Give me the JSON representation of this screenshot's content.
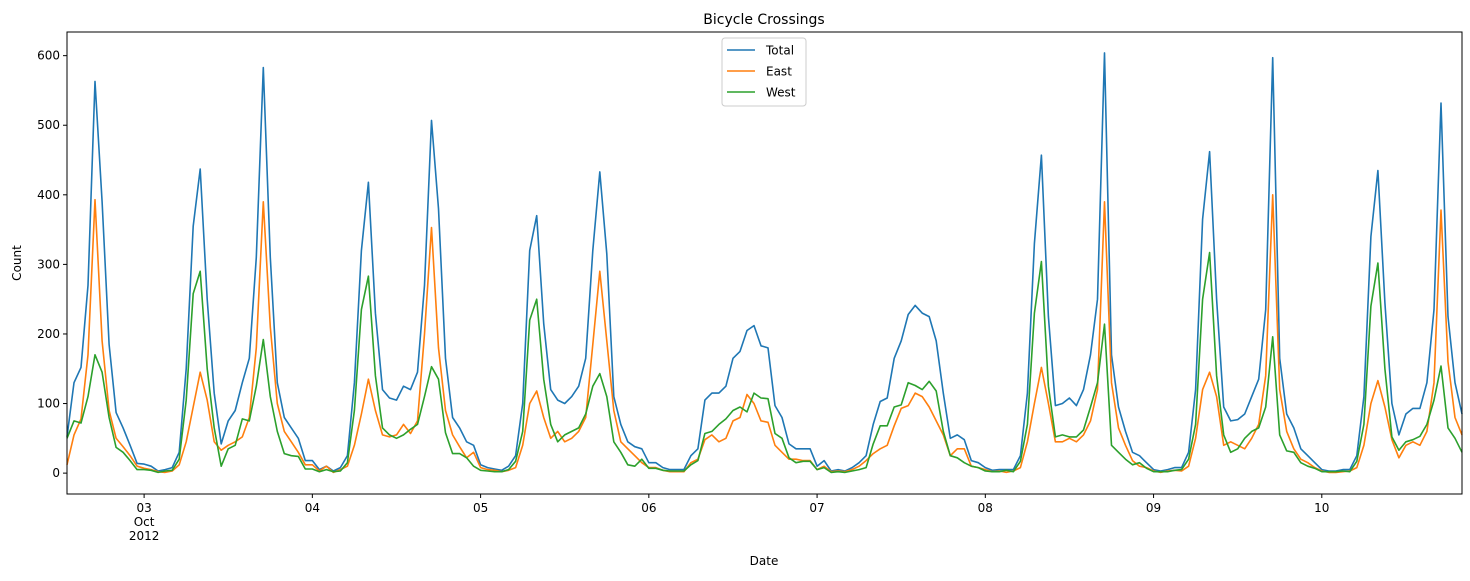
{
  "chart_data": {
    "type": "line",
    "title": "Bicycle Crossings",
    "xlabel": "Date",
    "ylabel": "Count",
    "x_start": "2012-10-02 13:00",
    "x_step": "1 hour",
    "ylim": [
      -30,
      634
    ],
    "yticks": [
      0,
      100,
      200,
      300,
      400,
      500,
      600
    ],
    "xticks": [
      {
        "hour_index": 11,
        "label": [
          "03",
          "Oct",
          "2012"
        ]
      },
      {
        "hour_index": 35,
        "label": [
          "04"
        ]
      },
      {
        "hour_index": 59,
        "label": [
          "05"
        ]
      },
      {
        "hour_index": 83,
        "label": [
          "06"
        ]
      },
      {
        "hour_index": 107,
        "label": [
          "07"
        ]
      },
      {
        "hour_index": 131,
        "label": [
          "08"
        ]
      },
      {
        "hour_index": 155,
        "label": [
          "09"
        ]
      },
      {
        "hour_index": 179,
        "label": [
          "10"
        ]
      }
    ],
    "legend_position": "top-center",
    "grid": false,
    "series": [
      {
        "name": "Total",
        "color": "#1f77b4",
        "values": [
          52,
          130,
          152,
          270,
          563,
          390,
          185,
          87,
          65,
          40,
          14,
          13,
          10,
          3,
          5,
          8,
          30,
          150,
          355,
          437,
          250,
          115,
          42,
          75,
          90,
          130,
          165,
          310,
          583,
          310,
          130,
          80,
          65,
          50,
          18,
          18,
          5,
          10,
          3,
          8,
          25,
          130,
          320,
          418,
          230,
          120,
          108,
          105,
          125,
          120,
          145,
          270,
          507,
          380,
          165,
          80,
          65,
          45,
          40,
          12,
          8,
          6,
          4,
          10,
          25,
          100,
          320,
          370,
          215,
          120,
          105,
          100,
          110,
          125,
          165,
          320,
          433,
          315,
          110,
          70,
          45,
          38,
          35,
          15,
          15,
          8,
          5,
          5,
          5,
          25,
          35,
          105,
          115,
          115,
          125,
          165,
          175,
          205,
          212,
          183,
          180,
          97,
          80,
          42,
          35,
          35,
          35,
          10,
          18,
          3,
          5,
          3,
          8,
          15,
          25,
          70,
          103,
          108,
          165,
          190,
          228,
          241,
          230,
          225,
          190,
          115,
          50,
          55,
          48,
          18,
          15,
          8,
          4,
          5,
          5,
          5,
          25,
          115,
          330,
          457,
          225,
          97,
          100,
          108,
          97,
          120,
          170,
          250,
          604,
          170,
          95,
          60,
          30,
          25,
          15,
          5,
          3,
          5,
          8,
          8,
          30,
          120,
          365,
          462,
          250,
          95,
          75,
          77,
          85,
          110,
          135,
          235,
          597,
          165,
          85,
          65,
          35,
          25,
          15,
          5,
          3,
          3,
          5,
          5,
          25,
          110,
          340,
          435,
          245,
          100,
          55,
          85,
          93,
          93,
          130,
          235,
          532,
          225,
          130,
          85
        ]
      },
      {
        "name": "East",
        "color": "#ff7f0e",
        "values": [
          12,
          55,
          78,
          170,
          393,
          190,
          90,
          50,
          38,
          25,
          10,
          7,
          5,
          2,
          1,
          3,
          12,
          45,
          95,
          145,
          105,
          45,
          33,
          40,
          45,
          52,
          80,
          180,
          390,
          210,
          100,
          60,
          45,
          30,
          12,
          12,
          3,
          10,
          1,
          5,
          10,
          40,
          85,
          135,
          90,
          55,
          52,
          55,
          70,
          57,
          75,
          200,
          353,
          180,
          90,
          55,
          38,
          22,
          30,
          8,
          5,
          4,
          2,
          4,
          8,
          40,
          100,
          118,
          80,
          50,
          60,
          45,
          50,
          60,
          80,
          185,
          290,
          190,
          90,
          45,
          35,
          25,
          15,
          8,
          8,
          4,
          2,
          2,
          2,
          15,
          20,
          48,
          55,
          45,
          50,
          75,
          80,
          113,
          100,
          75,
          73,
          40,
          30,
          20,
          20,
          18,
          18,
          5,
          10,
          2,
          3,
          2,
          5,
          10,
          18,
          28,
          35,
          40,
          68,
          93,
          97,
          115,
          110,
          95,
          75,
          55,
          25,
          35,
          35,
          10,
          8,
          5,
          2,
          3,
          1,
          3,
          8,
          45,
          100,
          152,
          100,
          45,
          45,
          50,
          45,
          55,
          75,
          120,
          390,
          130,
          65,
          40,
          18,
          10,
          8,
          3,
          1,
          3,
          4,
          3,
          10,
          50,
          120,
          145,
          110,
          40,
          45,
          40,
          35,
          50,
          70,
          140,
          400,
          120,
          60,
          35,
          20,
          15,
          8,
          3,
          1,
          1,
          2,
          3,
          8,
          40,
          100,
          133,
          95,
          48,
          22,
          40,
          45,
          40,
          60,
          130,
          378,
          160,
          80,
          55
        ]
      },
      {
        "name": "West",
        "color": "#2ca02c",
        "values": [
          50,
          75,
          72,
          110,
          170,
          145,
          80,
          37,
          30,
          18,
          5,
          5,
          4,
          1,
          3,
          4,
          20,
          105,
          258,
          290,
          150,
          65,
          10,
          35,
          40,
          78,
          75,
          125,
          192,
          110,
          60,
          28,
          25,
          24,
          6,
          6,
          2,
          5,
          2,
          3,
          15,
          90,
          235,
          283,
          140,
          65,
          55,
          50,
          55,
          63,
          70,
          110,
          153,
          135,
          58,
          28,
          28,
          22,
          10,
          4,
          3,
          2,
          2,
          5,
          17,
          60,
          220,
          250,
          135,
          70,
          45,
          55,
          60,
          65,
          85,
          125,
          143,
          110,
          45,
          30,
          12,
          10,
          20,
          7,
          7,
          4,
          3,
          3,
          3,
          12,
          18,
          57,
          60,
          70,
          78,
          90,
          95,
          88,
          115,
          108,
          107,
          57,
          50,
          22,
          15,
          17,
          17,
          5,
          8,
          1,
          2,
          1,
          3,
          5,
          8,
          42,
          68,
          68,
          95,
          98,
          130,
          126,
          120,
          132,
          118,
          60,
          25,
          22,
          15,
          10,
          8,
          3,
          2,
          2,
          4,
          2,
          17,
          70,
          230,
          304,
          125,
          52,
          55,
          52,
          52,
          62,
          95,
          130,
          214,
          40,
          30,
          20,
          12,
          15,
          7,
          2,
          2,
          2,
          4,
          5,
          20,
          70,
          250,
          317,
          140,
          55,
          30,
          35,
          50,
          60,
          65,
          95,
          196,
          55,
          32,
          30,
          15,
          10,
          7,
          2,
          2,
          2,
          3,
          2,
          17,
          70,
          240,
          302,
          150,
          52,
          33,
          45,
          48,
          53,
          70,
          105,
          154,
          65,
          50,
          30
        ]
      }
    ]
  }
}
